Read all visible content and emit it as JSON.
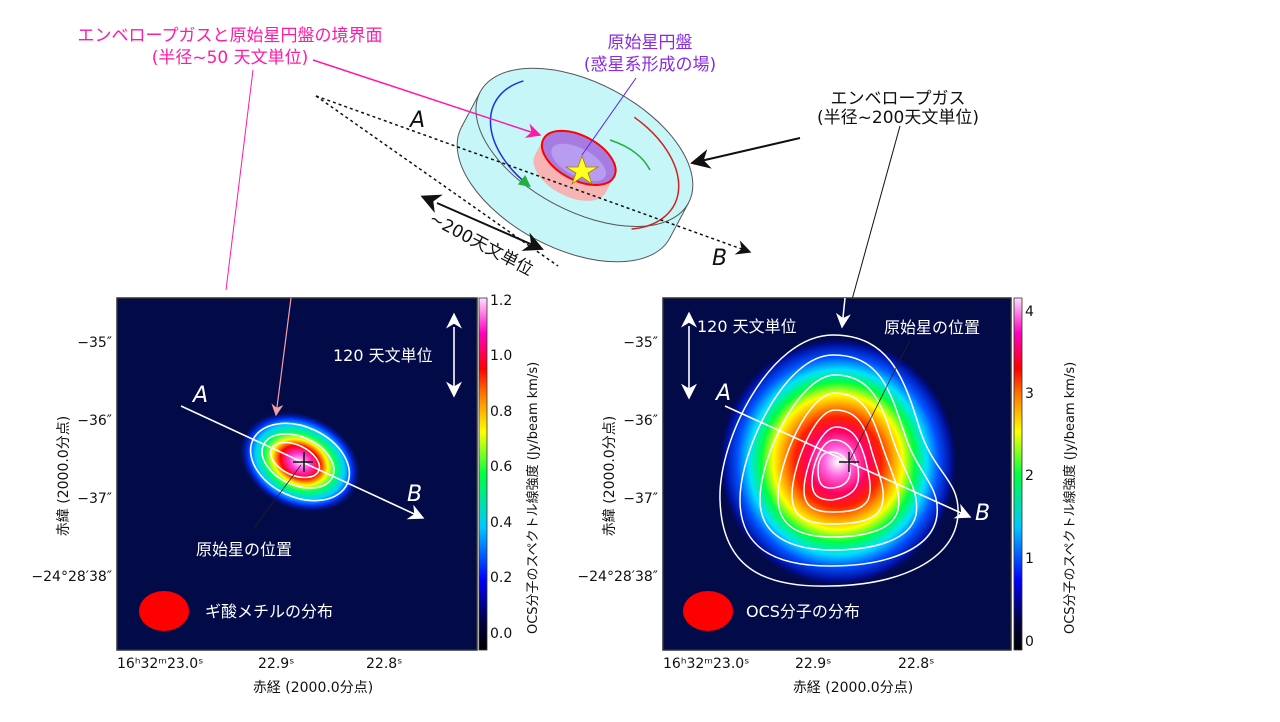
{
  "colors": {
    "magenta": "#ff1aa8",
    "purple": "#8a2be2",
    "black": "#111111",
    "beam": "#ff0000"
  },
  "diagram": {
    "boundary_label": "エンベロープガスと原始星円盤の境界面",
    "boundary_sub": "(半径~50 天文単位)",
    "disk_label": "原始星円盤",
    "disk_sub": "(惑星系形成の場)",
    "envelope_label": "エンベロープガス",
    "envelope_sub": "(半径~200天文単位)",
    "size_label": "~200天文単位",
    "point_a": "A",
    "point_b": "B"
  },
  "panels": [
    {
      "scale_label": "120 天文単位",
      "protostar_label": "原始星の位置",
      "legend": "ギ酸メチルの分布",
      "point_a": "A",
      "point_b": "B",
      "yticks": [
        "−35″",
        "−36″",
        "−37″",
        "−24°28′38″"
      ],
      "xticks": [
        "16ʰ32ᵐ23.0ˢ",
        "22.9ˢ",
        "22.8ˢ"
      ],
      "xlabel": "赤経 (2000.0分点)",
      "ylabel": "赤緯 (2000.0分点)",
      "cbar_label": "OCS分子のスペクトル線強度 (Jy/beam km/s)",
      "cbar_ticks": [
        "1.2",
        "1.0",
        "0.8",
        "0.6",
        "0.4",
        "0.2",
        "0.0"
      ]
    },
    {
      "scale_label": "120 天文単位",
      "protostar_label": "原始星の位置",
      "legend": "OCS分子の分布",
      "point_a": "A",
      "point_b": "B",
      "yticks": [
        "−35″",
        "−36″",
        "−37″",
        "−24°28′38″"
      ],
      "xticks": [
        "16ʰ32ᵐ23.0ˢ",
        "22.9ˢ",
        "22.8ˢ"
      ],
      "xlabel": "赤経 (2000.0分点)",
      "ylabel": "赤緯 (2000.0分点)",
      "cbar_label": "OCS分子のスペクトル線強度 (Jy/beam km/s)",
      "cbar_ticks": [
        "4",
        "3",
        "2",
        "1",
        "0"
      ]
    }
  ]
}
